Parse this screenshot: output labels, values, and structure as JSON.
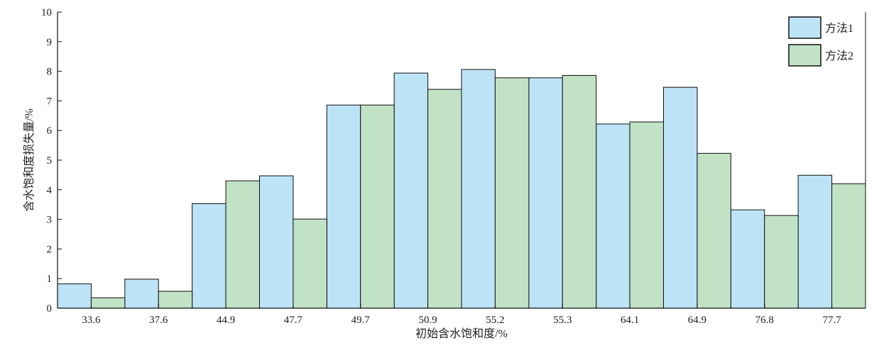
{
  "chart_data": {
    "type": "bar",
    "title": "",
    "xlabel": "初始含水饱和度/%",
    "ylabel": "含水饱和度损失量/%",
    "categories": [
      "33.6",
      "37.6",
      "44.9",
      "47.7",
      "49.7",
      "50.9",
      "55.2",
      "55.3",
      "64.1",
      "64.9",
      "76.8",
      "77.7"
    ],
    "series": [
      {
        "name": "方法1",
        "color": "#bde3f7",
        "values": [
          0.82,
          0.98,
          3.53,
          4.47,
          6.86,
          7.94,
          8.06,
          7.78,
          6.22,
          7.46,
          3.32,
          4.49
        ]
      },
      {
        "name": "方法2",
        "color": "#c2e2c5",
        "values": [
          0.35,
          0.57,
          4.3,
          3.01,
          6.86,
          7.39,
          7.78,
          7.86,
          6.29,
          5.23,
          3.13,
          4.2
        ]
      }
    ],
    "ylim": [
      0,
      10
    ],
    "yticks": [
      "0",
      "1",
      "2",
      "3",
      "4",
      "5",
      "6",
      "7",
      "8",
      "9",
      "10"
    ],
    "grid": false,
    "legend_position": "top-right"
  }
}
